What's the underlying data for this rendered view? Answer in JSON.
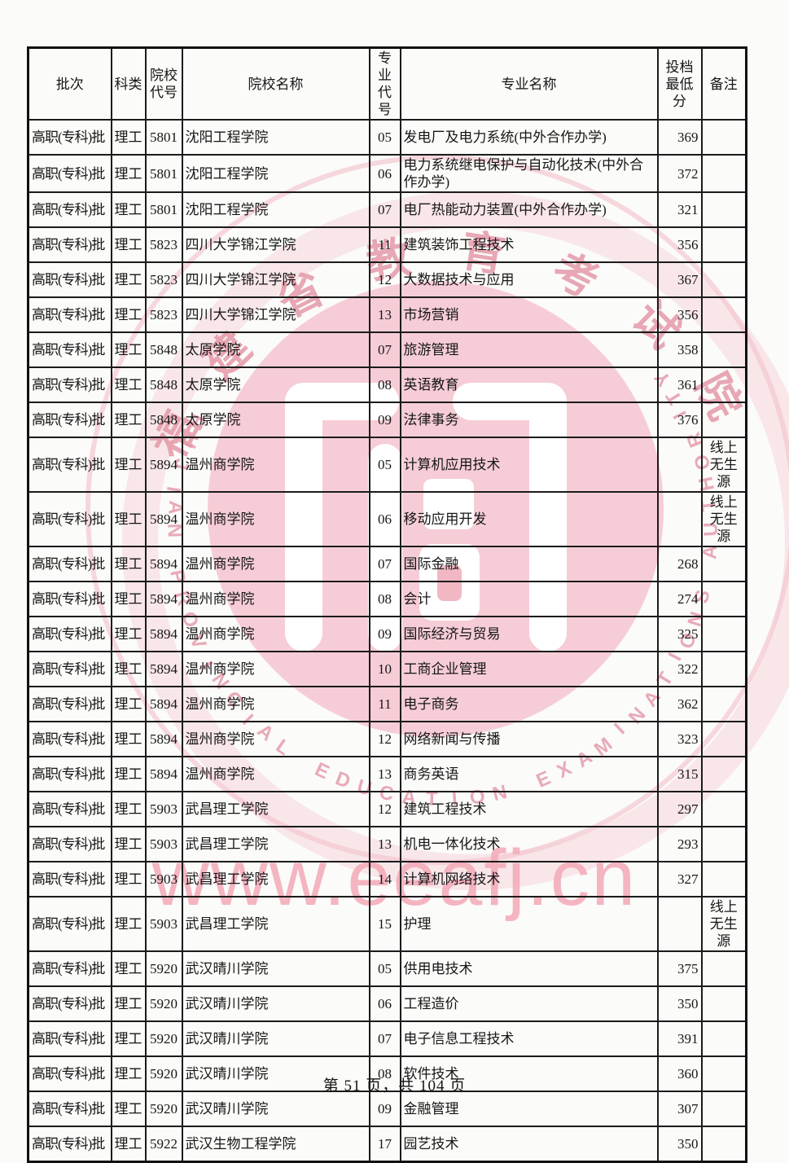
{
  "page": {
    "footer": "第 51 页，共 104 页"
  },
  "table": {
    "headers": [
      "批次",
      "科类",
      "院校\n代号",
      "院校名称",
      "专业\n代号",
      "专业名称",
      "投档\n最低分",
      "备注"
    ],
    "rows": [
      {
        "batch": "高职(专科)批",
        "category": "理工",
        "school_code": "5801",
        "school": "沈阳工程学院",
        "major_code": "05",
        "major": "发电厂及电力系统(中外合作办学)",
        "score": "369",
        "remark": ""
      },
      {
        "batch": "高职(专科)批",
        "category": "理工",
        "school_code": "5801",
        "school": "沈阳工程学院",
        "major_code": "06",
        "major": "电力系统继电保护与自动化技术(中外合作办学)",
        "score": "372",
        "remark": ""
      },
      {
        "batch": "高职(专科)批",
        "category": "理工",
        "school_code": "5801",
        "school": "沈阳工程学院",
        "major_code": "07",
        "major": "电厂热能动力装置(中外合作办学)",
        "score": "321",
        "remark": ""
      },
      {
        "batch": "高职(专科)批",
        "category": "理工",
        "school_code": "5823",
        "school": "四川大学锦江学院",
        "major_code": "11",
        "major": "建筑装饰工程技术",
        "score": "356",
        "remark": ""
      },
      {
        "batch": "高职(专科)批",
        "category": "理工",
        "school_code": "5823",
        "school": "四川大学锦江学院",
        "major_code": "12",
        "major": "大数据技术与应用",
        "score": "367",
        "remark": ""
      },
      {
        "batch": "高职(专科)批",
        "category": "理工",
        "school_code": "5823",
        "school": "四川大学锦江学院",
        "major_code": "13",
        "major": "市场营销",
        "score": "356",
        "remark": ""
      },
      {
        "batch": "高职(专科)批",
        "category": "理工",
        "school_code": "5848",
        "school": "太原学院",
        "major_code": "07",
        "major": "旅游管理",
        "score": "358",
        "remark": ""
      },
      {
        "batch": "高职(专科)批",
        "category": "理工",
        "school_code": "5848",
        "school": "太原学院",
        "major_code": "08",
        "major": "英语教育",
        "score": "361",
        "remark": ""
      },
      {
        "batch": "高职(专科)批",
        "category": "理工",
        "school_code": "5848",
        "school": "太原学院",
        "major_code": "09",
        "major": "法律事务",
        "score": "376",
        "remark": ""
      },
      {
        "batch": "高职(专科)批",
        "category": "理工",
        "school_code": "5894",
        "school": "温州商学院",
        "major_code": "05",
        "major": "计算机应用技术",
        "score": "",
        "remark": "线上\n无生源"
      },
      {
        "batch": "高职(专科)批",
        "category": "理工",
        "school_code": "5894",
        "school": "温州商学院",
        "major_code": "06",
        "major": "移动应用开发",
        "score": "",
        "remark": "线上\n无生源"
      },
      {
        "batch": "高职(专科)批",
        "category": "理工",
        "school_code": "5894",
        "school": "温州商学院",
        "major_code": "07",
        "major": "国际金融",
        "score": "268",
        "remark": ""
      },
      {
        "batch": "高职(专科)批",
        "category": "理工",
        "school_code": "5894",
        "school": "温州商学院",
        "major_code": "08",
        "major": "会计",
        "score": "274",
        "remark": ""
      },
      {
        "batch": "高职(专科)批",
        "category": "理工",
        "school_code": "5894",
        "school": "温州商学院",
        "major_code": "09",
        "major": "国际经济与贸易",
        "score": "325",
        "remark": ""
      },
      {
        "batch": "高职(专科)批",
        "category": "理工",
        "school_code": "5894",
        "school": "温州商学院",
        "major_code": "10",
        "major": "工商企业管理",
        "score": "322",
        "remark": ""
      },
      {
        "batch": "高职(专科)批",
        "category": "理工",
        "school_code": "5894",
        "school": "温州商学院",
        "major_code": "11",
        "major": "电子商务",
        "score": "362",
        "remark": ""
      },
      {
        "batch": "高职(专科)批",
        "category": "理工",
        "school_code": "5894",
        "school": "温州商学院",
        "major_code": "12",
        "major": "网络新闻与传播",
        "score": "323",
        "remark": ""
      },
      {
        "batch": "高职(专科)批",
        "category": "理工",
        "school_code": "5894",
        "school": "温州商学院",
        "major_code": "13",
        "major": "商务英语",
        "score": "315",
        "remark": ""
      },
      {
        "batch": "高职(专科)批",
        "category": "理工",
        "school_code": "5903",
        "school": "武昌理工学院",
        "major_code": "12",
        "major": "建筑工程技术",
        "score": "297",
        "remark": ""
      },
      {
        "batch": "高职(专科)批",
        "category": "理工",
        "school_code": "5903",
        "school": "武昌理工学院",
        "major_code": "13",
        "major": "机电一体化技术",
        "score": "293",
        "remark": ""
      },
      {
        "batch": "高职(专科)批",
        "category": "理工",
        "school_code": "5903",
        "school": "武昌理工学院",
        "major_code": "14",
        "major": "计算机网络技术",
        "score": "327",
        "remark": ""
      },
      {
        "batch": "高职(专科)批",
        "category": "理工",
        "school_code": "5903",
        "school": "武昌理工学院",
        "major_code": "15",
        "major": "护理",
        "score": "",
        "remark": "线上\n无生源"
      },
      {
        "batch": "高职(专科)批",
        "category": "理工",
        "school_code": "5920",
        "school": "武汉晴川学院",
        "major_code": "05",
        "major": "供用电技术",
        "score": "375",
        "remark": ""
      },
      {
        "batch": "高职(专科)批",
        "category": "理工",
        "school_code": "5920",
        "school": "武汉晴川学院",
        "major_code": "06",
        "major": "工程造价",
        "score": "350",
        "remark": ""
      },
      {
        "batch": "高职(专科)批",
        "category": "理工",
        "school_code": "5920",
        "school": "武汉晴川学院",
        "major_code": "07",
        "major": "电子信息工程技术",
        "score": "391",
        "remark": ""
      },
      {
        "batch": "高职(专科)批",
        "category": "理工",
        "school_code": "5920",
        "school": "武汉晴川学院",
        "major_code": "08",
        "major": "软件技术",
        "score": "360",
        "remark": ""
      },
      {
        "batch": "高职(专科)批",
        "category": "理工",
        "school_code": "5920",
        "school": "武汉晴川学院",
        "major_code": "09",
        "major": "金融管理",
        "score": "307",
        "remark": ""
      },
      {
        "batch": "高职(专科)批",
        "category": "理工",
        "school_code": "5922",
        "school": "武汉生物工程学院",
        "major_code": "17",
        "major": "园艺技术",
        "score": "350",
        "remark": ""
      }
    ]
  },
  "watermark": {
    "seal_text": "福建省教育考试院",
    "ring_text": "FUJIAN PROVINCIAL EDUCATION EXAMINATIONS AUTHORITY",
    "url_text": "www.eeafj.cn",
    "pink": "#f5c6d0"
  }
}
